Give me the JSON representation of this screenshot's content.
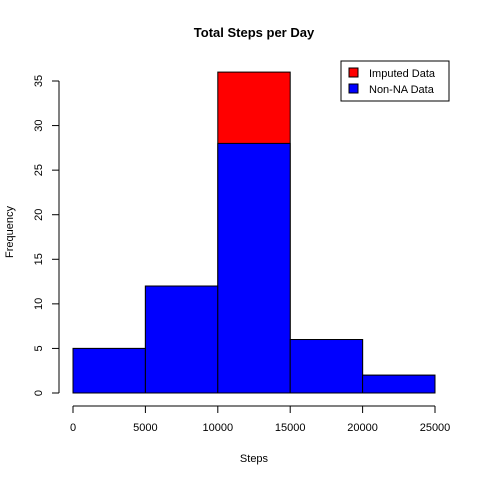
{
  "chart_data": {
    "type": "bar",
    "title": "Total Steps per Day",
    "xlabel": "Steps",
    "ylabel": "Frequency",
    "x_ticks": [
      "0",
      "5000",
      "10000",
      "15000",
      "20000",
      "25000"
    ],
    "y_ticks": [
      "0",
      "5",
      "10",
      "15",
      "20",
      "25",
      "30",
      "35"
    ],
    "xlim": [
      0,
      25000
    ],
    "ylim": [
      0,
      35
    ],
    "bin_edges": [
      0,
      5000,
      10000,
      15000,
      20000,
      25000
    ],
    "series": [
      {
        "name": "Imputed Data",
        "color": "#ff0000",
        "values": [
          5,
          12,
          36,
          6,
          2
        ]
      },
      {
        "name": "Non-NA Data",
        "color": "#0000ff",
        "values": [
          5,
          12,
          28,
          6,
          2
        ]
      }
    ],
    "legend_position": "top-right",
    "grid": false
  }
}
